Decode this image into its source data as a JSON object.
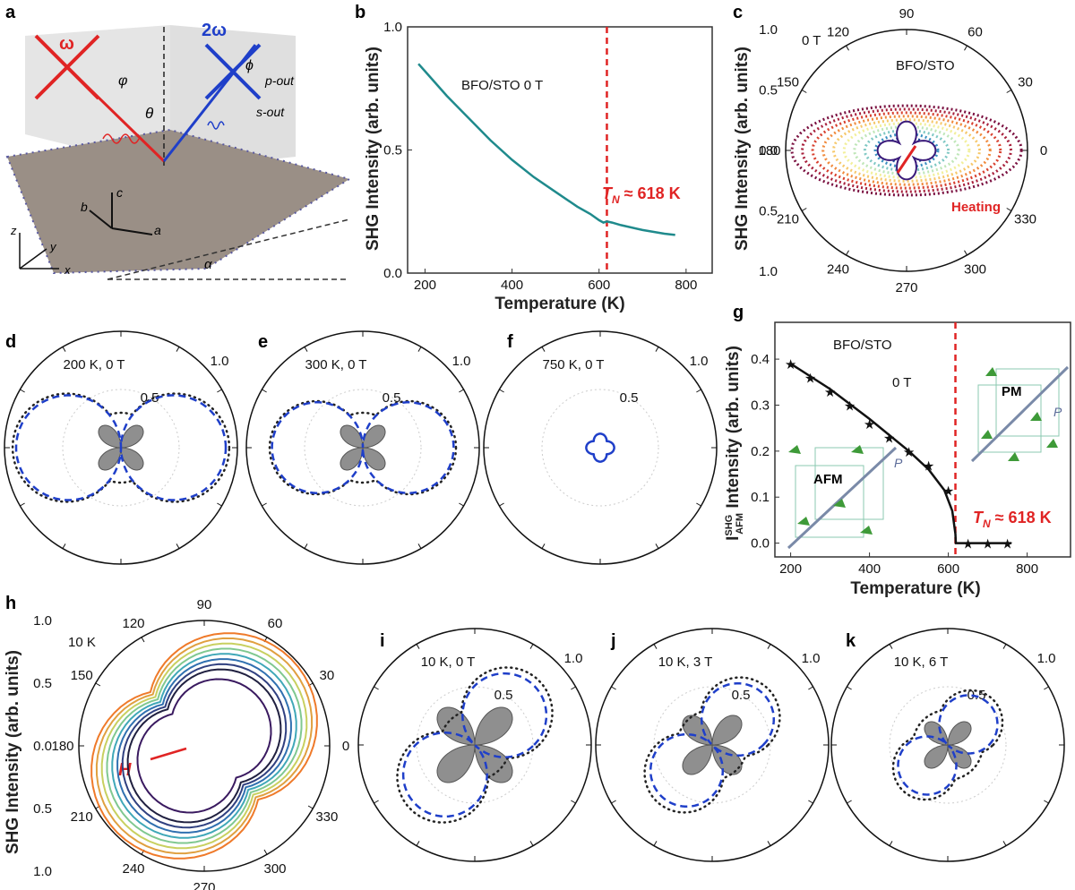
{
  "panels": {
    "a": {
      "label": "a",
      "omega": "ω",
      "two_omega": "2ω",
      "phi": "φ",
      "phi2": "ϕ",
      "p_out": "p-out",
      "s_out": "s-out",
      "theta": "θ",
      "alpha": "α",
      "axis_a": "a",
      "axis_b": "b",
      "axis_c": "c",
      "axis_x": "x",
      "axis_y": "y",
      "axis_z": "z"
    },
    "b": {
      "label": "b"
    },
    "c": {
      "label": "c"
    },
    "d": {
      "label": "d"
    },
    "e": {
      "label": "e"
    },
    "f": {
      "label": "f"
    },
    "g": {
      "label": "g"
    },
    "h": {
      "label": "h"
    },
    "i": {
      "label": "i"
    },
    "j": {
      "label": "j"
    },
    "k": {
      "label": "k"
    }
  },
  "colors": {
    "curve_teal": "#1f8a8c",
    "dashed_red": "#e02424",
    "dashed_blue": "#1f3fc9",
    "dotted_black": "#222222",
    "gray_lobe": "#8f8f8f",
    "star_teal": "#1f6f7a"
  },
  "chart_data": [
    {
      "id": "b",
      "type": "line",
      "xlabel": "Temperature (K)",
      "ylabel": "SHG Intensity (arb. units)",
      "xlim": [
        160,
        860
      ],
      "ylim": [
        0,
        1.0
      ],
      "xticks": [
        "200",
        "400",
        "600",
        "800"
      ],
      "yticks": [
        "0.0",
        "0.5",
        "1.0"
      ],
      "annotation": "BFO/STO   0 T",
      "tn_label": "T",
      "tn_sub": "N",
      "tn_rest": " ≈ 618 K",
      "tn_value": 618,
      "series": [
        {
          "x": [
            185,
            200,
            250,
            300,
            350,
            400,
            450,
            500,
            550,
            580,
            600,
            610,
            618,
            630,
            650,
            700,
            750,
            775
          ],
          "y": [
            0.85,
            0.82,
            0.72,
            0.63,
            0.54,
            0.46,
            0.39,
            0.33,
            0.27,
            0.24,
            0.215,
            0.205,
            0.21,
            0.205,
            0.195,
            0.175,
            0.16,
            0.155
          ]
        }
      ]
    },
    {
      "id": "c",
      "type": "polar",
      "ylabel": "SHG Intensity (arb. units)",
      "rticks_top": [
        "1.0",
        "0.5",
        "0.0"
      ],
      "rticks_bottom": [
        "0.5",
        "1.0"
      ],
      "angle_labels": [
        "0",
        "30",
        "60",
        "90",
        "120",
        "150",
        "180",
        "210",
        "240",
        "270",
        "300",
        "330"
      ],
      "field": "0 T",
      "sample": "BFO/STO",
      "arrow_label": "Heating"
    },
    {
      "id": "d",
      "type": "polar",
      "title": "200 K, 0 T",
      "rticks": [
        "1.0",
        "0.5"
      ],
      "dotted_lobe": 0.93,
      "blue_lobe": 0.9,
      "gray_lobe": 0.25
    },
    {
      "id": "e",
      "type": "polar",
      "title": "300 K, 0 T",
      "rticks": [
        "1.0",
        "0.5"
      ],
      "dotted_lobe": 0.8,
      "blue_lobe": 0.78,
      "gray_lobe": 0.25
    },
    {
      "id": "f",
      "type": "polar",
      "title": "750 K, 0 T",
      "rticks": [
        "1.0",
        "0.5"
      ],
      "blue_lobe": 0.12
    },
    {
      "id": "g",
      "type": "line",
      "xlabel": "Temperature (K)",
      "ylabel_main": "I",
      "ylabel_sup": "SHG",
      "ylabel_sub": "AFM",
      "ylabel_rest": " Intensity (arb. units)",
      "xlim": [
        160,
        910
      ],
      "ylim": [
        -0.03,
        0.48
      ],
      "xticks": [
        "200",
        "400",
        "600",
        "800"
      ],
      "yticks": [
        "0.0",
        "0.1",
        "0.2",
        "0.3",
        "0.4"
      ],
      "sample": "BFO/STO",
      "field": "0 T",
      "afm": "AFM",
      "pm": "PM",
      "p": "P",
      "tn_label": "T",
      "tn_sub": "N",
      "tn_rest": " ≈ 618 K",
      "tn_value": 618,
      "stars": {
        "x": [
          200,
          250,
          300,
          350,
          400,
          450,
          500,
          550,
          600,
          650,
          700,
          750
        ],
        "y": [
          0.39,
          0.36,
          0.33,
          0.3,
          0.26,
          0.23,
          0.2,
          0.17,
          0.115,
          0.0,
          0.0,
          0.0
        ]
      },
      "fit": {
        "x": [
          200,
          300,
          400,
          500,
          550,
          590,
          610,
          618,
          619,
          760
        ],
        "y": [
          0.39,
          0.335,
          0.27,
          0.2,
          0.16,
          0.115,
          0.07,
          0.02,
          0.0,
          0.0
        ]
      }
    },
    {
      "id": "h",
      "type": "polar",
      "ylabel": "SHG Intensity (arb. units)",
      "rticks_top": [
        "1.0",
        "0.5",
        "0.0"
      ],
      "rticks_bottom": [
        "0.5",
        "1.0"
      ],
      "angle_labels": [
        "0",
        "30",
        "60",
        "90",
        "120",
        "150",
        "180",
        "210",
        "240",
        "270",
        "300",
        "330"
      ],
      "temp": "10 K",
      "arrow_label": "H"
    },
    {
      "id": "i",
      "type": "polar",
      "title": "10 K, 0 T",
      "rticks": [
        "1.0",
        "0.5"
      ],
      "tilt_deg": 45,
      "dotted_lobe": 0.78,
      "blue_lobe": 0.72,
      "gray_lobe": 0.42
    },
    {
      "id": "j",
      "type": "polar",
      "title": "10 K, 3 T",
      "rticks": [
        "1.0",
        "0.5"
      ],
      "tilt_deg": 45,
      "dotted_lobe": 0.68,
      "blue_lobe": 0.62,
      "gray_lobe": 0.33
    },
    {
      "id": "k",
      "type": "polar",
      "title": "10 K, 6 T",
      "rticks": [
        "1.0",
        "0.5"
      ],
      "tilt_deg": 45,
      "dotted_lobe": 0.55,
      "blue_lobe": 0.5,
      "gray_lobe": 0.26
    }
  ]
}
